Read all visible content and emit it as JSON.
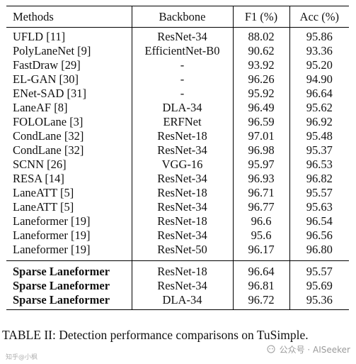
{
  "table": {
    "headers": [
      "Methods",
      "Backbone",
      "F1 (%)",
      "Acc (%)"
    ],
    "baseline_rows": [
      {
        "method": "UFLD [11]",
        "backbone": "ResNet-34",
        "f1": "88.02",
        "acc": "95.86"
      },
      {
        "method": "PolyLaneNet [9]",
        "backbone": "EfficientNet-B0",
        "f1": "90.62",
        "acc": "93.36"
      },
      {
        "method": "FastDraw [29]",
        "backbone": "-",
        "f1": "93.92",
        "acc": "95.20"
      },
      {
        "method": "EL-GAN [30]",
        "backbone": "-",
        "f1": "96.26",
        "acc": "94.90"
      },
      {
        "method": "ENet-SAD [31]",
        "backbone": "-",
        "f1": "95.92",
        "acc": "96.64"
      },
      {
        "method": "LaneAF [8]",
        "backbone": "DLA-34",
        "f1": "96.49",
        "acc": "95.62"
      },
      {
        "method": "FOLOLane [3]",
        "backbone": "ERFNet",
        "f1": "96.59",
        "acc": "96.92"
      },
      {
        "method": "CondLane [32]",
        "backbone": "ResNet-18",
        "f1": "97.01",
        "acc": "95.48"
      },
      {
        "method": "CondLane [32]",
        "backbone": "ResNet-34",
        "f1": "96.98",
        "acc": "95.37"
      },
      {
        "method": "SCNN [26]",
        "backbone": "VGG-16",
        "f1": "95.97",
        "acc": "96.53"
      },
      {
        "method": "RESA [14]",
        "backbone": "ResNet-34",
        "f1": "96.93",
        "acc": "96.82"
      },
      {
        "method": "LaneATT [5]",
        "backbone": "ResNet-18",
        "f1": "96.71",
        "acc": "95.57"
      },
      {
        "method": "LaneATT [5]",
        "backbone": "ResNet-34",
        "f1": "96.77",
        "acc": "95.63"
      },
      {
        "method": "Laneformer [19]",
        "backbone": "ResNet-18",
        "f1": "96.6",
        "acc": "96.54"
      },
      {
        "method": "Laneformer [19]",
        "backbone": "ResNet-34",
        "f1": "95.6",
        "acc": "96.56"
      },
      {
        "method": "Laneformer [19]",
        "backbone": "ResNet-50",
        "f1": "96.17",
        "acc": "96.80"
      }
    ],
    "proposed_rows": [
      {
        "method": "Sparse Laneformer",
        "backbone": "ResNet-18",
        "f1": "96.64",
        "acc": "95.57"
      },
      {
        "method": "Sparse Laneformer",
        "backbone": "ResNet-34",
        "f1": "96.81",
        "acc": "95.69"
      },
      {
        "method": "Sparse Laneformer",
        "backbone": "DLA-34",
        "f1": "96.72",
        "acc": "95.36"
      }
    ]
  },
  "caption": "TABLE II: Detection performance comparisons on TuSimple.",
  "watermark": {
    "text": "公众号 · AISeeker",
    "left_text": "知乎@小枫",
    "color": "#9a9a9a"
  }
}
